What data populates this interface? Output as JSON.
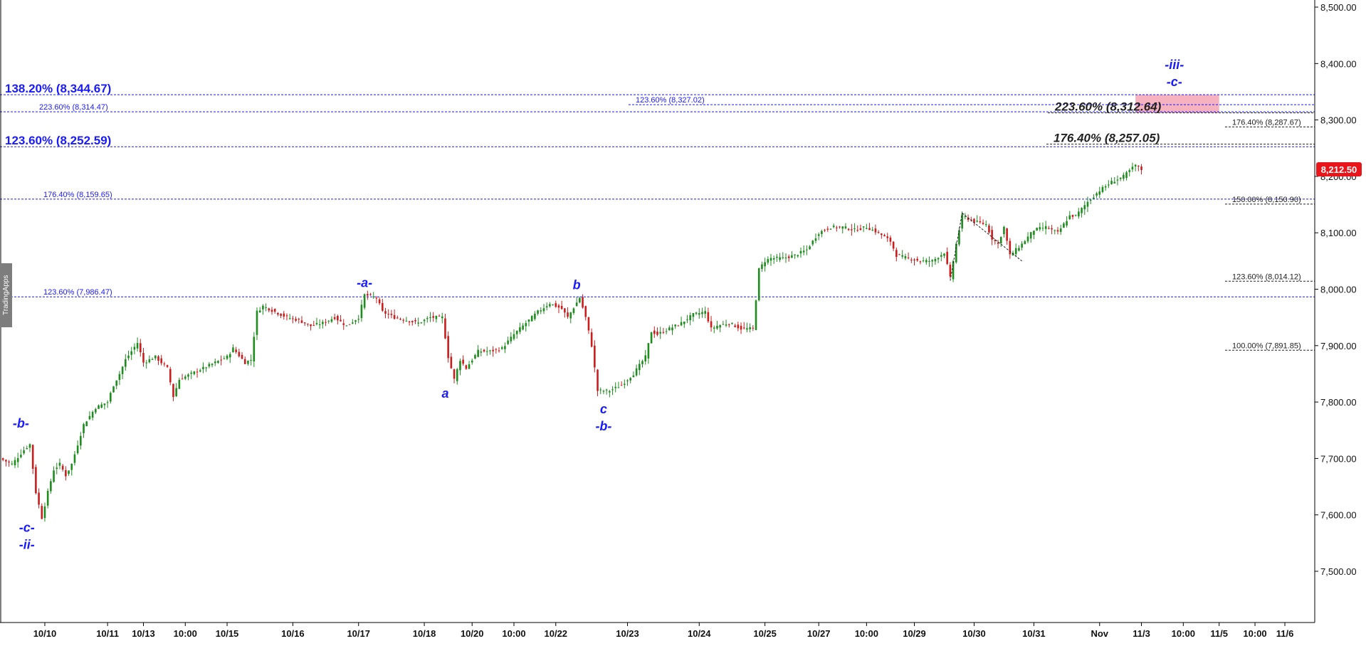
{
  "watermark": "TradingApps",
  "colors": {
    "up": "#1e8c1e",
    "down": "#c81e1e",
    "fib_blue": "#1a1aff",
    "fib_black": "#222222",
    "price_tag": "#e8151a",
    "target_zone": "#f4a6b4",
    "wave_label": "#1a1aff"
  },
  "chart_data": {
    "type": "line",
    "title": "",
    "xlabel": "",
    "ylabel": "",
    "ylim": [
      7400,
      8500
    ],
    "grid": false,
    "y_ticks": [
      "8,500.00",
      "8,400.00",
      "8,300.00",
      "8,200.00",
      "8,100.00",
      "8,000.00",
      "7,900.00",
      "7,800.00",
      "7,700.00",
      "7,600.00",
      "7,500.00"
    ],
    "y_tick_values": [
      8500,
      8400,
      8300,
      8200,
      8100,
      8000,
      7900,
      7800,
      7700,
      7600,
      7500
    ],
    "x_ticks": [
      "10/10",
      "10/11",
      "10/13",
      "10:00",
      "10/15",
      "10/16",
      "10/17",
      "10/18",
      "10/20",
      "10:00",
      "10/22",
      "10/23",
      "10/24",
      "10/25",
      "10/27",
      "10:00",
      "10/29",
      "10/30",
      "10/31",
      "Nov",
      "11/3",
      "10:00",
      "11/5",
      "10:00",
      "11/6"
    ],
    "x_tick_index": [
      7.5,
      18,
      24,
      31,
      38,
      49,
      60,
      71,
      79,
      86,
      93,
      105,
      117,
      128,
      137,
      145,
      153,
      163,
      173,
      184,
      191,
      198,
      204,
      210,
      215
    ],
    "x_range": [
      0,
      220
    ],
    "last_price": "8,212.50",
    "last_price_value": 8212.5,
    "price_path": [
      [
        0,
        7700
      ],
      [
        2,
        7690
      ],
      [
        4,
        7715
      ],
      [
        5,
        7725
      ],
      [
        6,
        7640
      ],
      [
        7,
        7595
      ],
      [
        8,
        7640
      ],
      [
        9,
        7680
      ],
      [
        10,
        7690
      ],
      [
        11,
        7670
      ],
      [
        12,
        7690
      ],
      [
        14,
        7760
      ],
      [
        16,
        7790
      ],
      [
        18,
        7800
      ],
      [
        19,
        7830
      ],
      [
        20,
        7850
      ],
      [
        21,
        7875
      ],
      [
        23,
        7905
      ],
      [
        24,
        7870
      ],
      [
        26,
        7880
      ],
      [
        28,
        7860
      ],
      [
        29,
        7810
      ],
      [
        30,
        7840
      ],
      [
        32,
        7850
      ],
      [
        34,
        7860
      ],
      [
        36,
        7870
      ],
      [
        38,
        7880
      ],
      [
        39,
        7895
      ],
      [
        41,
        7870
      ],
      [
        42,
        7875
      ],
      [
        43,
        7960
      ],
      [
        44,
        7970
      ],
      [
        46,
        7960
      ],
      [
        48,
        7950
      ],
      [
        50,
        7945
      ],
      [
        52,
        7935
      ],
      [
        54,
        7940
      ],
      [
        56,
        7950
      ],
      [
        58,
        7935
      ],
      [
        60,
        7950
      ],
      [
        61,
        7990
      ],
      [
        63,
        7985
      ],
      [
        64,
        7960
      ],
      [
        66,
        7950
      ],
      [
        68,
        7945
      ],
      [
        70,
        7940
      ],
      [
        72,
        7950
      ],
      [
        74,
        7950
      ],
      [
        75,
        7880
      ],
      [
        76,
        7840
      ],
      [
        77,
        7875
      ],
      [
        78,
        7860
      ],
      [
        80,
        7890
      ],
      [
        82,
        7890
      ],
      [
        84,
        7895
      ],
      [
        86,
        7920
      ],
      [
        88,
        7940
      ],
      [
        90,
        7960
      ],
      [
        92,
        7975
      ],
      [
        94,
        7965
      ],
      [
        95,
        7950
      ],
      [
        97,
        7985
      ],
      [
        98,
        7950
      ],
      [
        99,
        7900
      ],
      [
        100,
        7820
      ],
      [
        102,
        7820
      ],
      [
        104,
        7830
      ],
      [
        106,
        7850
      ],
      [
        108,
        7880
      ],
      [
        109,
        7925
      ],
      [
        110,
        7920
      ],
      [
        112,
        7930
      ],
      [
        114,
        7940
      ],
      [
        116,
        7955
      ],
      [
        118,
        7960
      ],
      [
        119,
        7930
      ],
      [
        120,
        7935
      ],
      [
        122,
        7940
      ],
      [
        124,
        7930
      ],
      [
        126,
        7930
      ],
      [
        127,
        8035
      ],
      [
        128,
        8050
      ],
      [
        129,
        8055
      ],
      [
        131,
        8055
      ],
      [
        133,
        8060
      ],
      [
        135,
        8070
      ],
      [
        137,
        8100
      ],
      [
        139,
        8110
      ],
      [
        141,
        8110
      ],
      [
        143,
        8105
      ],
      [
        145,
        8110
      ],
      [
        147,
        8100
      ],
      [
        149,
        8085
      ],
      [
        150,
        8060
      ],
      [
        152,
        8055
      ],
      [
        154,
        8050
      ],
      [
        156,
        8050
      ],
      [
        158,
        8065
      ],
      [
        159,
        8020
      ],
      [
        160,
        8080
      ],
      [
        161,
        8130
      ],
      [
        163,
        8120
      ],
      [
        165,
        8115
      ],
      [
        166,
        8090
      ],
      [
        167,
        8080
      ],
      [
        168,
        8110
      ],
      [
        169,
        8060
      ],
      [
        171,
        8080
      ],
      [
        173,
        8105
      ],
      [
        175,
        8110
      ],
      [
        177,
        8100
      ],
      [
        179,
        8130
      ],
      [
        180,
        8130
      ],
      [
        182,
        8155
      ],
      [
        184,
        8175
      ],
      [
        186,
        8190
      ],
      [
        188,
        8200
      ],
      [
        190,
        8220
      ],
      [
        191,
        8212
      ]
    ],
    "fib_levels": [
      {
        "label": "138.20% (8,344.67)",
        "value": 8344.67,
        "color": "blue",
        "big": true,
        "label_x": 7
      },
      {
        "label": "223.60% (8,314.47)",
        "value": 8314.47,
        "color": "blue",
        "big": false,
        "label_x": 55
      },
      {
        "label": "123.60% (8,327.02)",
        "value": 8327.02,
        "color": "blue",
        "big": false,
        "label_x": 893
      },
      {
        "label": "223.60% (8,312.64)",
        "value": 8312.64,
        "color": "black",
        "big": true,
        "label_x": 1482
      },
      {
        "label": "176.40% (8,287.67)",
        "value": 8287.67,
        "color": "black",
        "big": false,
        "label_x": 1731
      },
      {
        "label": "123.60% (8,252.59)",
        "value": 8252.59,
        "color": "blue",
        "big": true,
        "label_x": 7
      },
      {
        "label": "176.40% (8,257.05)",
        "value": 8257.05,
        "color": "black",
        "big": true,
        "label_x": 1480
      },
      {
        "label": "176.40% (8,159.65)",
        "value": 8159.65,
        "color": "blue",
        "big": false,
        "label_x": 61
      },
      {
        "label": "150.00% (8,150.90)",
        "value": 8150.9,
        "color": "black",
        "big": false,
        "label_x": 1731
      },
      {
        "label": "123.60% (8,014.12)",
        "value": 8014.12,
        "color": "black",
        "big": false,
        "label_x": 1731
      },
      {
        "label": "123.60% (7,986.47)",
        "value": 7986.47,
        "color": "blue",
        "big": false,
        "label_x": 61
      },
      {
        "label": "100.00% (7,891.85)",
        "value": 7891.85,
        "color": "black",
        "big": false,
        "label_x": 1731
      }
    ],
    "wave_labels": [
      {
        "text": "-b-",
        "i": 3.5,
        "value": 7755
      },
      {
        "text": "-c-",
        "i": 4.5,
        "value": 7570
      },
      {
        "text": "-ii-",
        "i": 4.5,
        "value": 7540
      },
      {
        "text": "-a-",
        "i": 61,
        "value": 8004
      },
      {
        "text": "a",
        "i": 74.5,
        "value": 7808
      },
      {
        "text": "b",
        "i": 96.5,
        "value": 8000
      },
      {
        "text": "c",
        "i": 101,
        "value": 7780
      },
      {
        "text": "-b-",
        "i": 101,
        "value": 7750
      },
      {
        "text": "-iii-",
        "i": 196.5,
        "value": 8390
      },
      {
        "text": "-c-",
        "i": 196.5,
        "value": 8360
      }
    ],
    "target_zone": {
      "i_start": 190,
      "i_end": 204,
      "low": 8312.64,
      "high": 8344.67
    },
    "dashed_connectors": [
      [
        [
          161,
          8135
        ],
        [
          171,
          8050
        ]
      ],
      [
        [
          159,
          8015
        ],
        [
          161,
          8135
        ]
      ]
    ]
  }
}
